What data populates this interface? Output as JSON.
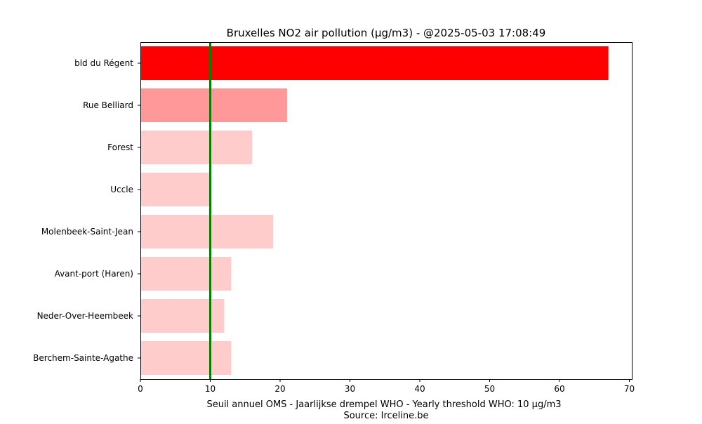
{
  "chart_data": {
    "type": "bar",
    "orientation": "horizontal",
    "title": "Bruxelles NO2 air pollution (µg/m3) - @2025-05-03 17:08:49",
    "xlabel": "Seuil annuel OMS - Jaarlijkse drempel WHO - Yearly threshold WHO: 10 µg/m3",
    "source": "Source: Irceline.be",
    "categories": [
      "bld du Régent",
      "Rue Belliard",
      "Forest",
      "Uccle",
      "Molenbeek-Saint-Jean",
      "Avant-port (Haren)",
      "Neder-Over-Heembeek",
      "Berchem-Sainte-Agathe"
    ],
    "values": [
      67,
      21,
      16,
      10,
      19,
      13,
      12,
      13
    ],
    "bar_colors": [
      "#ff0000",
      "#ff9999",
      "#ffcccc",
      "#ffcccc",
      "#ffcccc",
      "#ffcccc",
      "#ffcccc",
      "#ffcccc"
    ],
    "threshold": {
      "value": 10,
      "color": "#008000"
    },
    "xlim": [
      0,
      70.35
    ],
    "xticks": [
      "0",
      "10",
      "20",
      "30",
      "40",
      "50",
      "60",
      "70"
    ],
    "grid": false,
    "legend": "none"
  }
}
